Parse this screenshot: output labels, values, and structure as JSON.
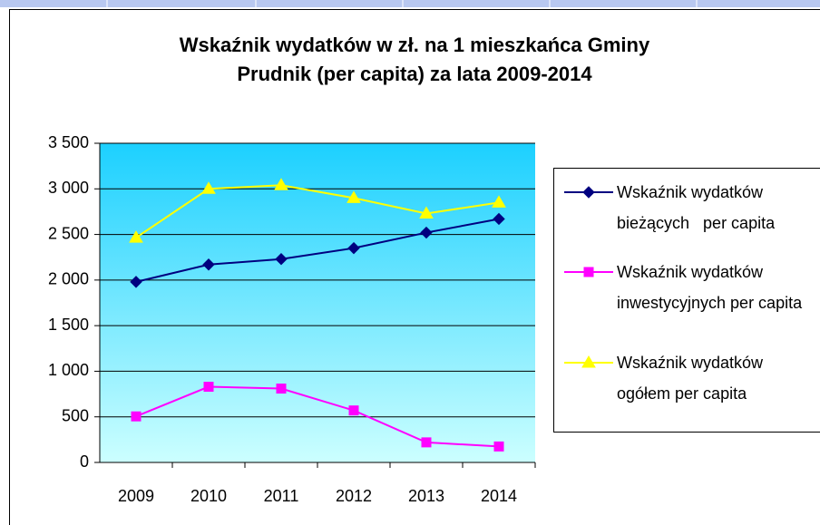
{
  "chart_data": {
    "type": "line",
    "title": "Wskaźnik wydatków w zł. na 1 mieszkańca Gminy Prudnik (per capita) za lata 2009-2014",
    "categories": [
      "2009",
      "2010",
      "2011",
      "2012",
      "2013",
      "2014"
    ],
    "series": [
      {
        "name": "Wskaźnik wydatków bieżących   per capita",
        "color": "#000080",
        "marker": "diamond",
        "values": [
          1980,
          2170,
          2230,
          2350,
          2520,
          2670
        ]
      },
      {
        "name": "Wskaźnik wydatków inwestycyjnych per capita",
        "color": "#ff00ff",
        "marker": "square",
        "values": [
          505,
          830,
          810,
          570,
          220,
          175
        ]
      },
      {
        "name": "Wskaźnik wydatków ogółem per capita",
        "color": "#ffff00",
        "marker": "triangle",
        "values": [
          2465,
          3000,
          3040,
          2900,
          2730,
          2850
        ]
      }
    ],
    "ylim": [
      0,
      3500
    ],
    "yticks": [
      0,
      500,
      {
        "value": 1000,
        "label": "1 000"
      },
      {
        "value": 1500,
        "label": "1 500"
      },
      {
        "value": 2000,
        "label": "2 000"
      },
      {
        "value": 2500,
        "label": "2 500"
      },
      {
        "value": 3000,
        "label": "3 000"
      },
      {
        "value": 3500,
        "label": "3 500"
      }
    ],
    "grid": true,
    "legend": "right"
  }
}
